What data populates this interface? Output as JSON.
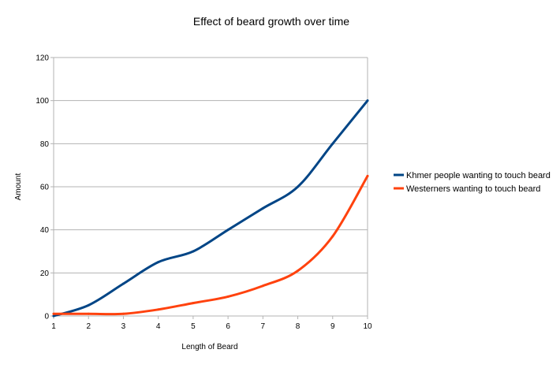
{
  "chart_data": {
    "type": "line",
    "title": "Effect of beard growth over time",
    "xlabel": "Length of Beard",
    "ylabel": "Amount",
    "x": [
      1,
      2,
      3,
      4,
      5,
      6,
      7,
      8,
      9,
      10
    ],
    "xticks": [
      "1",
      "2",
      "3",
      "4",
      "5",
      "6",
      "7",
      "8",
      "9",
      "10"
    ],
    "yticks": [
      "0",
      "20",
      "40",
      "60",
      "80",
      "100",
      "120"
    ],
    "ylim": [
      0,
      120
    ],
    "grid": "horizontal",
    "legend_position": "right",
    "series": [
      {
        "name": "Khmer people wanting to touch beard",
        "color": "#004586",
        "values": [
          0,
          5,
          15,
          25,
          30,
          40,
          50,
          60,
          80,
          100
        ]
      },
      {
        "name": "Westerners wanting to touch beard",
        "color": "#ff420e",
        "values": [
          1,
          1,
          1,
          3,
          6,
          9,
          14,
          21,
          37,
          65
        ]
      }
    ]
  }
}
